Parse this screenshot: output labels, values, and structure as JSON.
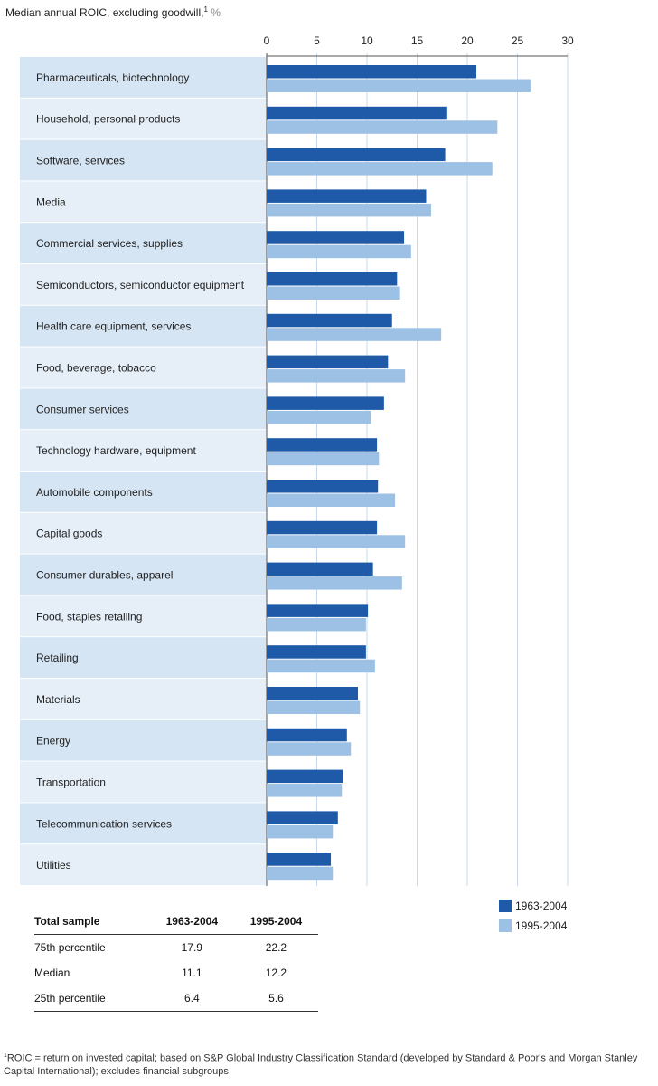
{
  "chart_data": {
    "type": "bar",
    "orientation": "horizontal",
    "title": "Median annual ROIC, excluding goodwill,",
    "title_footnote_mark": "1",
    "unit": "%",
    "xlim": [
      0,
      30
    ],
    "ticks": [
      "0",
      "5",
      "10",
      "15",
      "20",
      "25",
      "30"
    ],
    "categories": [
      "Pharmaceuticals, biotechnology",
      "Household, personal products",
      "Software, services",
      "Media",
      "Commercial services, supplies",
      "Semiconductors, semiconductor equipment",
      "Health care equipment, services",
      "Food, beverage, tobacco",
      "Consumer services",
      "Technology hardware, equipment",
      "Automobile components",
      "Capital goods",
      "Consumer durables, apparel",
      "Food, staples retailing",
      "Retailing",
      "Materials",
      "Energy",
      "Transportation",
      "Telecommunication services",
      "Utilities"
    ],
    "series": [
      {
        "name": "1963-2004",
        "color": "#1f5aa8",
        "values": [
          20.9,
          18.0,
          17.8,
          15.9,
          13.7,
          13.0,
          12.5,
          12.1,
          11.7,
          11.0,
          11.1,
          11.0,
          10.6,
          10.1,
          9.9,
          9.1,
          8.0,
          7.6,
          7.1,
          6.4
        ]
      },
      {
        "name": "1995-2004",
        "color": "#9dc0e5",
        "values": [
          26.3,
          23.0,
          22.5,
          16.4,
          14.4,
          13.3,
          17.4,
          13.8,
          10.4,
          11.2,
          12.8,
          13.8,
          13.5,
          9.9,
          10.8,
          9.3,
          8.4,
          7.5,
          6.6,
          6.6
        ]
      }
    ],
    "legend_position": "bottom-right",
    "row_band_colors": [
      "#d6e5f4",
      "#e6eff8"
    ]
  },
  "summary_table": {
    "header": [
      "Total sample",
      "1963-2004",
      "1995-2004"
    ],
    "rows": [
      [
        "75th percentile",
        "17.9",
        "22.2"
      ],
      [
        "Median",
        "11.1",
        "12.2"
      ],
      [
        "25th percentile",
        "6.4",
        "5.6"
      ]
    ]
  },
  "footnote": {
    "mark": "1",
    "text": "ROIC = return on invested capital; based on S&P Global Industry Classification Standard (developed by Standard & Poor's and Morgan Stanley Capital International); excludes financial subgroups."
  }
}
